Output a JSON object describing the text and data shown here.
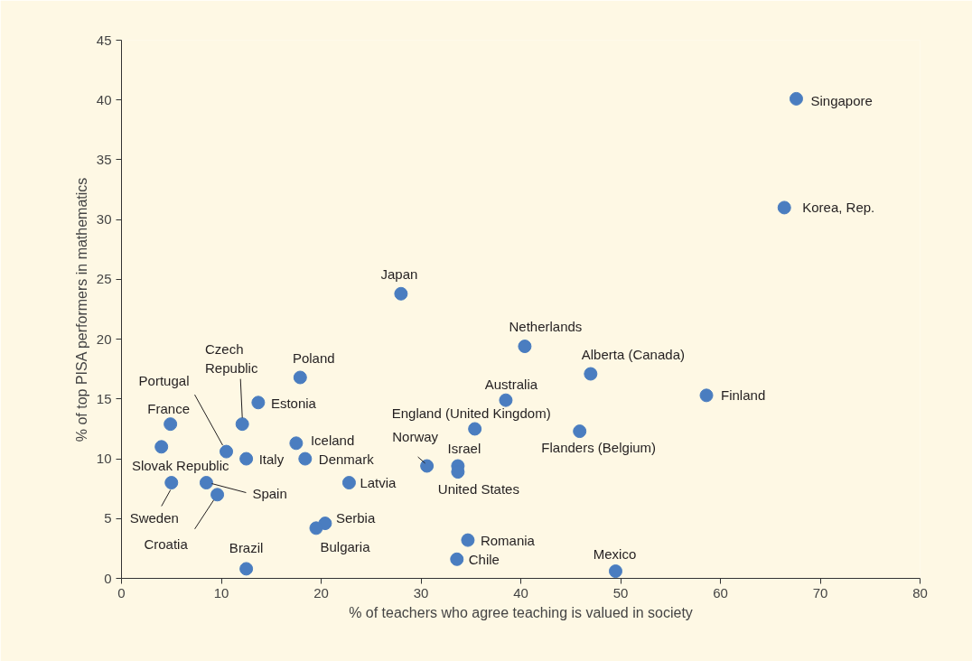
{
  "chart_data": {
    "type": "scatter",
    "xlabel": "% of teachers who agree teaching is valued in society",
    "ylabel": "% of top PISA performers in mathematics",
    "xlim": [
      0,
      80
    ],
    "ylim": [
      0,
      45
    ],
    "xticks": [
      0,
      10,
      20,
      30,
      40,
      50,
      60,
      70,
      80
    ],
    "yticks": [
      0,
      5,
      10,
      15,
      20,
      25,
      30,
      35,
      40,
      45
    ],
    "grid": false,
    "marker": "circle",
    "series": [
      {
        "color": "#4a7dc0",
        "x": [
          67.6,
          66.4,
          28.0,
          40.4,
          47.0,
          58.6,
          38.5,
          35.4,
          45.9,
          33.7,
          30.6,
          33.7,
          17.9,
          13.7,
          12.1,
          10.5,
          12.5,
          17.5,
          18.4,
          22.8,
          20.4,
          19.5,
          12.5,
          34.7,
          33.6,
          49.5,
          4.9,
          4.0,
          5.0,
          8.5,
          9.6
        ],
        "values": [
          40.1,
          31.0,
          23.8,
          19.4,
          17.1,
          15.3,
          14.9,
          12.5,
          12.3,
          9.4,
          9.4,
          8.9,
          16.8,
          14.7,
          12.9,
          10.6,
          10.0,
          11.3,
          10.0,
          8.0,
          4.6,
          4.2,
          0.8,
          3.2,
          1.6,
          0.6,
          12.9,
          11.0,
          8.0,
          8.0,
          7.0
        ]
      }
    ],
    "annotations": [
      {
        "text": "Singapore",
        "x": 67.6,
        "y": 40.1
      },
      {
        "text": "Korea, Rep.",
        "x": 66.4,
        "y": 31.0
      },
      {
        "text": "Japan",
        "x": 28.0,
        "y": 23.8
      },
      {
        "text": "Netherlands",
        "x": 40.4,
        "y": 19.4
      },
      {
        "text": "Alberta (Canada)",
        "x": 47.0,
        "y": 17.1
      },
      {
        "text": "Finland",
        "x": 58.6,
        "y": 15.3
      },
      {
        "text": "Australia",
        "x": 38.5,
        "y": 14.9
      },
      {
        "text": "England (United Kingdom)",
        "x": 35.4,
        "y": 12.5
      },
      {
        "text": "Flanders (Belgium)",
        "x": 45.9,
        "y": 12.3
      },
      {
        "text": "Israel",
        "x": 33.7,
        "y": 9.4
      },
      {
        "text": "Norway",
        "x": 30.6,
        "y": 9.4
      },
      {
        "text": "United States",
        "x": 33.7,
        "y": 8.9
      },
      {
        "text": "Poland",
        "x": 17.9,
        "y": 16.8
      },
      {
        "text": "Estonia",
        "x": 13.7,
        "y": 14.7
      },
      {
        "text": "Czech Republic",
        "x": 12.1,
        "y": 12.9
      },
      {
        "text": "Portugal",
        "x": 10.5,
        "y": 10.6
      },
      {
        "text": "Italy",
        "x": 12.5,
        "y": 10.0
      },
      {
        "text": "Iceland",
        "x": 17.5,
        "y": 11.3
      },
      {
        "text": "Denmark",
        "x": 18.4,
        "y": 10.0
      },
      {
        "text": "Latvia",
        "x": 22.8,
        "y": 8.0
      },
      {
        "text": "Serbia",
        "x": 20.4,
        "y": 4.6
      },
      {
        "text": "Bulgaria",
        "x": 19.5,
        "y": 4.2
      },
      {
        "text": "Brazil",
        "x": 12.5,
        "y": 0.8
      },
      {
        "text": "Romania",
        "x": 34.7,
        "y": 3.2
      },
      {
        "text": "Chile",
        "x": 33.6,
        "y": 1.6
      },
      {
        "text": "Mexico",
        "x": 49.5,
        "y": 0.6
      },
      {
        "text": "France",
        "x": 4.9,
        "y": 12.9
      },
      {
        "text": "Slovak Republic",
        "x": 4.0,
        "y": 11.0
      },
      {
        "text": "Sweden",
        "x": 5.0,
        "y": 8.0
      },
      {
        "text": "Spain",
        "x": 8.5,
        "y": 8.0
      },
      {
        "text": "Croatia",
        "x": 9.6,
        "y": 7.0
      }
    ]
  }
}
